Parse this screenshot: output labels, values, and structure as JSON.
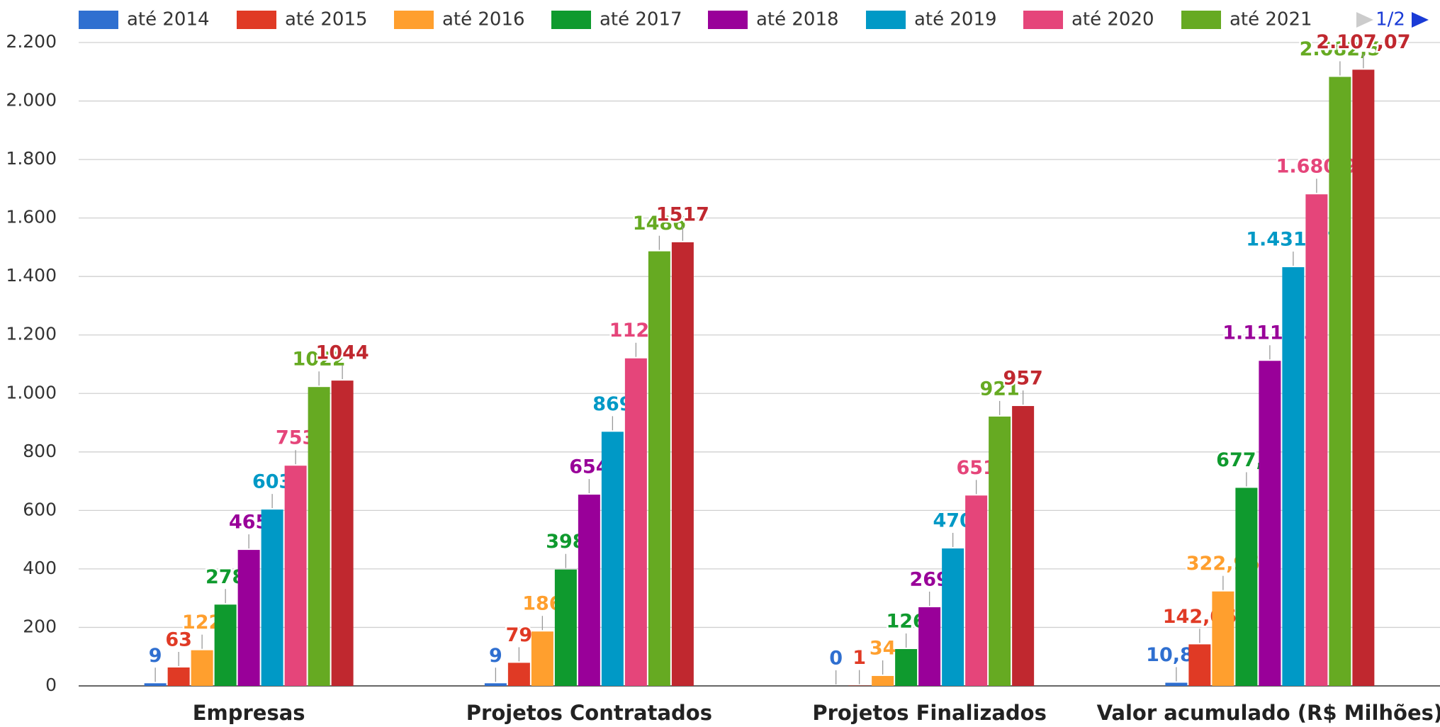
{
  "chart_data": {
    "type": "bar",
    "categories": [
      "Empresas",
      "Projetos Contratados",
      "Projetos Finalizados",
      "Valor acumulado (R$ Milhões)"
    ],
    "series": [
      {
        "name": "até 2014",
        "color": "#2f6fd0",
        "values": [
          9,
          9,
          0,
          10.84
        ],
        "value_labels": [
          "9",
          "9",
          "0",
          "10,84"
        ]
      },
      {
        "name": "até 2015",
        "color": "#e03a25",
        "values": [
          63,
          79,
          1,
          142.06
        ],
        "value_labels": [
          "63",
          "79",
          "1",
          "142,06"
        ]
      },
      {
        "name": "até 2016",
        "color": "#ff9f2e",
        "values": [
          122,
          186,
          34,
          322.95
        ],
        "value_labels": [
          "122",
          "186",
          "34",
          "322,95"
        ]
      },
      {
        "name": "até 2017",
        "color": "#0f9a2e",
        "values": [
          278,
          398,
          126,
          677.3
        ],
        "value_labels": [
          "278",
          "398",
          "126",
          "677,3"
        ]
      },
      {
        "name": "até 2018",
        "color": "#990099",
        "values": [
          465,
          654,
          269,
          1111.53
        ],
        "value_labels": [
          "465",
          "654",
          "269",
          "1.111,53"
        ]
      },
      {
        "name": "até 2019",
        "color": "#0099c6",
        "values": [
          603,
          869,
          470,
          1431.77
        ],
        "value_labels": [
          "603",
          "869",
          "470",
          "1.431,77"
        ]
      },
      {
        "name": "até 2020",
        "color": "#e5457a",
        "values": [
          753,
          1120,
          651,
          1680.9
        ],
        "value_labels": [
          "753",
          "1120",
          "651",
          "1.680,9"
        ]
      },
      {
        "name": "até 2021",
        "color": "#66aa22",
        "values": [
          1022,
          1486,
          921,
          2082.5
        ],
        "value_labels": [
          "1022",
          "1486",
          "921",
          "2.082,5"
        ]
      },
      {
        "color": "#c0282f",
        "values": [
          1044,
          1517,
          957,
          2107.07
        ],
        "value_labels": [
          "1044",
          "1517",
          "957",
          "2.107,07"
        ]
      }
    ],
    "ylim": [
      0,
      2200
    ],
    "yticks": [
      0,
      200,
      400,
      600,
      800,
      {
        "value": 1000,
        "label": "1.000"
      },
      {
        "value": 1200,
        "label": "1.200"
      },
      {
        "value": 1400,
        "label": "1.400"
      },
      {
        "value": 1600,
        "label": "1.600"
      },
      {
        "value": 1800,
        "label": "1.800"
      },
      {
        "value": 2000,
        "label": "2.000"
      },
      {
        "value": 2200,
        "label": "2.200"
      }
    ],
    "grid": true,
    "legend": "top",
    "legend_page": "1/2"
  }
}
